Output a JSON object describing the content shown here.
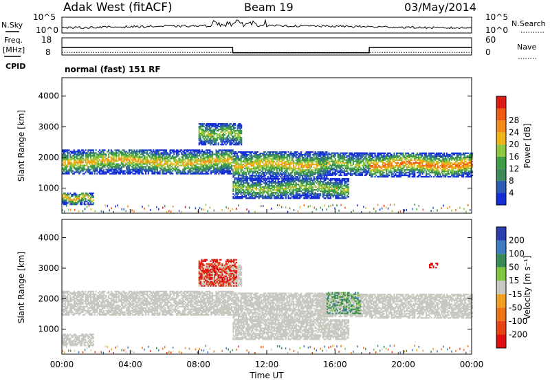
{
  "header": {
    "station": "Adak West (fitACF)",
    "beam": "Beam 19",
    "date": "03/May/2014"
  },
  "noise_panel": {
    "left_label": "N.Sky",
    "right_label": "N.Search",
    "left_ticks": [
      "10^5",
      "10^0"
    ],
    "right_ticks": [
      "10^5",
      "10^0"
    ]
  },
  "freq_panel": {
    "left_label_1": "Freq.",
    "left_label_2": "[MHz]",
    "left_ticks": [
      "18",
      "8"
    ],
    "right_label": "Nave",
    "right_ticks": [
      "60",
      "0"
    ],
    "cpid_label": "CPID",
    "mode": "normal (fast) 151 RF"
  },
  "colors": {
    "power": [
      "#1530d8",
      "#2e5eb4",
      "#3c8a5a",
      "#3f9e45",
      "#8ec63f",
      "#f0b419",
      "#f08c17",
      "#ee5a14",
      "#dd1a14"
    ],
    "velocity": [
      "#2b3fae",
      "#3f7cc4",
      "#3a8a58",
      "#7fc542",
      "#c8c8c0",
      "#f0a020",
      "#ef7418",
      "#e64414",
      "#e01010"
    ],
    "velocity_gray": "#c8c8c0"
  },
  "chart_data": [
    {
      "type": "heatmap",
      "title": "",
      "xlabel": "Time UT",
      "ylabel": "Slant Range [km]",
      "x_tick_labels": [
        "00:00",
        "04:00",
        "08:00",
        "12:00",
        "16:00",
        "20:00",
        "00:00"
      ],
      "x_range_hours": [
        0,
        24
      ],
      "ylim": [
        180,
        4600
      ],
      "y_ticks": [
        1000,
        2000,
        3000,
        4000
      ],
      "colorbar": {
        "label": "Power [dB]",
        "ticks": [
          4,
          8,
          12,
          16,
          20,
          24,
          28
        ],
        "range": [
          0,
          30
        ]
      },
      "echo_regions": [
        {
          "t_start": 0.0,
          "t_end": 10.0,
          "range_low": 1450,
          "range_high": 2250,
          "peak_db": 20
        },
        {
          "t_start": 10.0,
          "t_end": 15.5,
          "range_low": 1300,
          "range_high": 2200,
          "peak_db": 20
        },
        {
          "t_start": 10.0,
          "t_end": 16.8,
          "range_low": 650,
          "range_high": 1300,
          "peak_db": 16
        },
        {
          "t_start": 15.0,
          "t_end": 18.0,
          "range_low": 1400,
          "range_high": 2150,
          "peak_db": 16
        },
        {
          "t_start": 18.0,
          "t_end": 24.0,
          "range_low": 1350,
          "range_high": 2150,
          "peak_db": 24
        },
        {
          "t_start": 0.0,
          "t_end": 1.8,
          "range_low": 450,
          "range_high": 850,
          "peak_db": 20
        },
        {
          "t_start": 8.0,
          "t_end": 10.5,
          "range_low": 2400,
          "range_high": 3100,
          "peak_db": 16
        }
      ]
    },
    {
      "type": "heatmap",
      "title": "",
      "xlabel": "Time UT",
      "ylabel": "Slant Range [km]",
      "x_tick_labels": [
        "00:00",
        "04:00",
        "08:00",
        "12:00",
        "16:00",
        "20:00",
        "00:00"
      ],
      "x_range_hours": [
        0,
        24
      ],
      "ylim": [
        180,
        4600
      ],
      "y_ticks": [
        1000,
        2000,
        3000,
        4000
      ],
      "colorbar": {
        "label": "Velocity [m s⁻¹]",
        "ticks": [
          200,
          100,
          50,
          15,
          -15,
          -50,
          -100,
          -200
        ],
        "range": [
          -250,
          250
        ]
      },
      "note_values": {
        "dominant_velocity_ms": 0,
        "scatter_patches": [
          {
            "t_start": 8.0,
            "t_end": 10.2,
            "range_low": 2400,
            "range_high": 3300,
            "velocity_ms": -150
          },
          {
            "t_start": 15.5,
            "t_end": 17.5,
            "range_low": 1500,
            "range_high": 2200,
            "velocity_ms": 40
          },
          {
            "t_start": 21.5,
            "t_end": 22.0,
            "range_low": 3000,
            "range_high": 3150,
            "velocity_ms": -200
          }
        ]
      }
    },
    {
      "type": "line",
      "title": "",
      "xlabel": "",
      "ylabel": "",
      "x": [
        0,
        4,
        8,
        9,
        10,
        10.01,
        14,
        18,
        18.01,
        24
      ],
      "series": [],
      "freq_MHz": [
        13,
        13,
        13,
        13,
        13,
        9.5,
        9.5,
        9.5,
        13,
        13
      ],
      "nave": [
        10,
        10,
        10,
        10,
        10,
        10,
        10,
        10,
        10,
        10
      ]
    }
  ]
}
